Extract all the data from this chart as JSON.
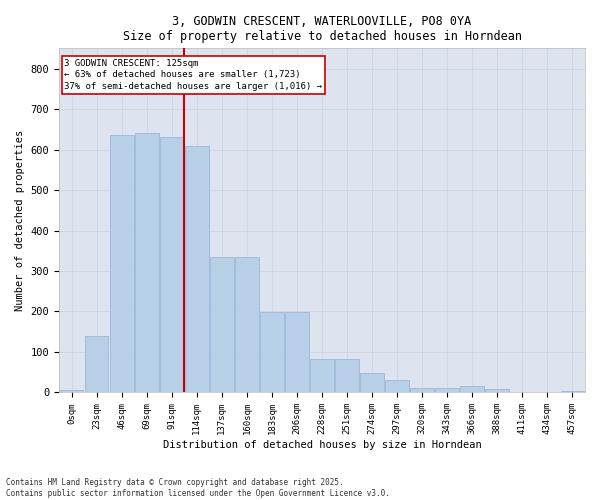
{
  "title": "3, GODWIN CRESCENT, WATERLOOVILLE, PO8 0YA",
  "subtitle": "Size of property relative to detached houses in Horndean",
  "xlabel": "Distribution of detached houses by size in Horndean",
  "ylabel": "Number of detached properties",
  "bins": [
    "0sqm",
    "23sqm",
    "46sqm",
    "69sqm",
    "91sqm",
    "114sqm",
    "137sqm",
    "160sqm",
    "183sqm",
    "206sqm",
    "228sqm",
    "251sqm",
    "274sqm",
    "297sqm",
    "320sqm",
    "343sqm",
    "366sqm",
    "388sqm",
    "411sqm",
    "434sqm",
    "457sqm"
  ],
  "values": [
    5,
    140,
    635,
    640,
    630,
    610,
    335,
    335,
    198,
    198,
    82,
    82,
    48,
    30,
    12,
    12,
    15,
    8,
    0,
    0,
    3
  ],
  "bar_color": "#b8cfe8",
  "bar_edge_color": "#90b4d8",
  "grid_color": "#c8d4e4",
  "bg_color": "#dde4f0",
  "vline_color": "#cc0000",
  "annotation_text": "3 GODWIN CRESCENT: 125sqm\n← 63% of detached houses are smaller (1,723)\n37% of semi-detached houses are larger (1,016) →",
  "annotation_box_color": "#cc0000",
  "footer": "Contains HM Land Registry data © Crown copyright and database right 2025.\nContains public sector information licensed under the Open Government Licence v3.0.",
  "ylim": [
    0,
    850
  ],
  "yticks": [
    0,
    100,
    200,
    300,
    400,
    500,
    600,
    700,
    800
  ]
}
